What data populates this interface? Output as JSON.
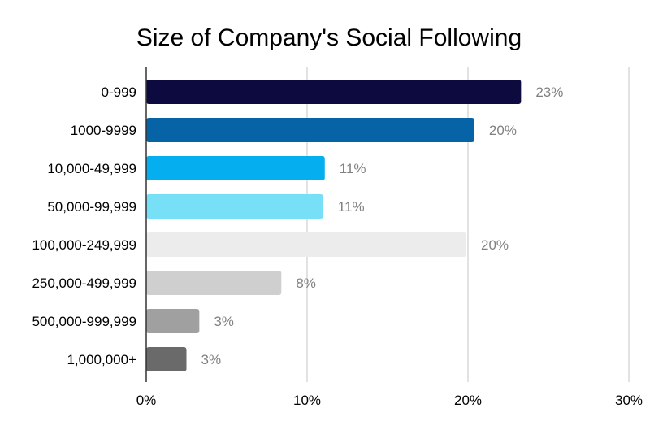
{
  "chart_data": {
    "type": "bar",
    "orientation": "horizontal",
    "title": "Size of Company's Social Following",
    "xlabel": "",
    "ylabel": "",
    "xlim": [
      0,
      30
    ],
    "x_ticks": [
      0,
      10,
      20,
      30
    ],
    "x_tick_labels": [
      "0%",
      "10%",
      "20%",
      "30%"
    ],
    "grid": true,
    "legend": "none",
    "categories": [
      "0-999",
      "1000-9999",
      "10,000-49,999",
      "50,000-99,999",
      "100,000-249,999",
      "250,000-499,999",
      "500,000-999,999",
      "1,000,000+"
    ],
    "values": [
      23.3,
      20.4,
      11.1,
      11.0,
      19.9,
      8.4,
      3.3,
      2.5
    ],
    "data_labels": [
      "23%",
      "20%",
      "11%",
      "11%",
      "20%",
      "8%",
      "3%",
      "3%"
    ],
    "bar_colors": [
      "#0c0a3e",
      "#0563a6",
      "#04aeef",
      "#77e0f6",
      "#ececec",
      "#cfcfcf",
      "#a0a0a0",
      "#6a6a6a"
    ],
    "gridline_color": "#d9d9d9",
    "axis_color": "#333333"
  }
}
